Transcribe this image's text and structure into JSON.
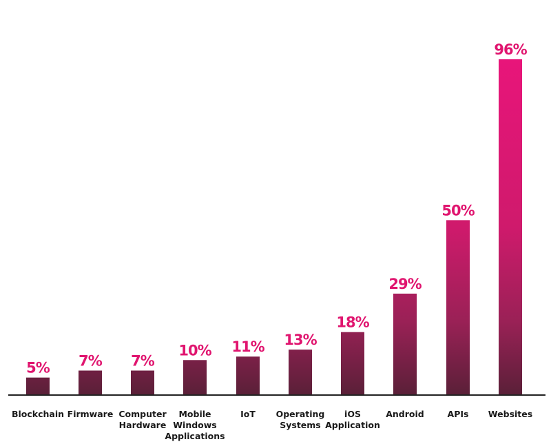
{
  "chart_data": {
    "type": "bar",
    "categories": [
      [
        "Blockchain"
      ],
      [
        "Firmware"
      ],
      [
        "Computer",
        "Hardware"
      ],
      [
        "Mobile",
        "Windows",
        "Applications"
      ],
      [
        "IoT"
      ],
      [
        "Operating",
        "Systems"
      ],
      [
        "iOS",
        "Application"
      ],
      [
        "Android"
      ],
      [
        "APIs"
      ],
      [
        "Websites"
      ]
    ],
    "values": [
      5,
      7,
      7,
      10,
      11,
      13,
      18,
      29,
      50,
      96
    ],
    "value_labels": [
      "5%",
      "7%",
      "7%",
      "10%",
      "11%",
      "13%",
      "18%",
      "29%",
      "50%",
      "96%"
    ],
    "title": "",
    "xlabel": "",
    "ylabel": "",
    "ylim": [
      0,
      96
    ],
    "grid": false,
    "legend": "none",
    "colors": {
      "label": "#e0156f",
      "bar_base": "#5a2038",
      "bar_top": "#e8157a",
      "axis": "#222222",
      "text": "#1a1a1a"
    }
  }
}
